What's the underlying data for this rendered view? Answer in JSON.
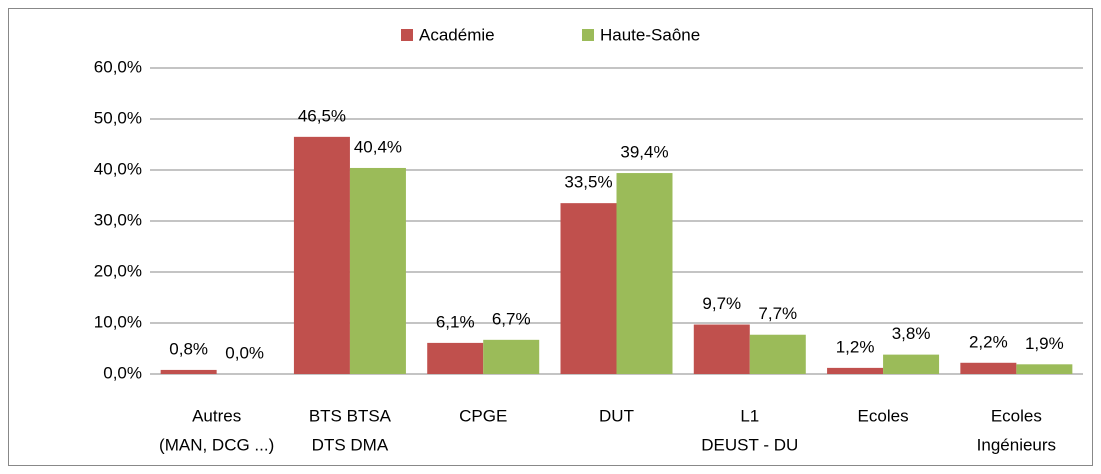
{
  "chart_data": {
    "type": "bar",
    "categories": [
      [
        "Autres",
        "(MAN, DCG ...)"
      ],
      [
        "BTS BTSA",
        "DTS  DMA"
      ],
      [
        "CPGE"
      ],
      [
        "DUT"
      ],
      [
        "L1",
        "DEUST - DU"
      ],
      [
        "Ecoles"
      ],
      [
        "Ecoles",
        "Ingénieurs"
      ]
    ],
    "series": [
      {
        "name": "Académie",
        "color": "#c0504d",
        "values": [
          0.8,
          46.5,
          6.1,
          33.5,
          9.7,
          1.2,
          2.2
        ],
        "value_labels": [
          "0,8%",
          "46,5%",
          "6,1%",
          "33,5%",
          "9,7%",
          "1,2%",
          "2,2%"
        ]
      },
      {
        "name": "Haute-Saône",
        "color": "#9bbb59",
        "values": [
          0.0,
          40.4,
          6.7,
          39.4,
          7.7,
          3.8,
          1.9
        ],
        "value_labels": [
          "0,0%",
          "40,4%",
          "6,7%",
          "39,4%",
          "7,7%",
          "3,8%",
          "1,9%"
        ]
      }
    ],
    "ylim": [
      0,
      60
    ],
    "yticks": [
      {
        "value": 0,
        "label": "0,0%"
      },
      {
        "value": 10,
        "label": "10,0%"
      },
      {
        "value": 20,
        "label": "20,0%"
      },
      {
        "value": 30,
        "label": "30,0%"
      },
      {
        "value": 40,
        "label": "40,0%"
      },
      {
        "value": 50,
        "label": "50,0%"
      },
      {
        "value": 60,
        "label": "60,0%"
      }
    ],
    "grid": true,
    "legend": "top"
  }
}
